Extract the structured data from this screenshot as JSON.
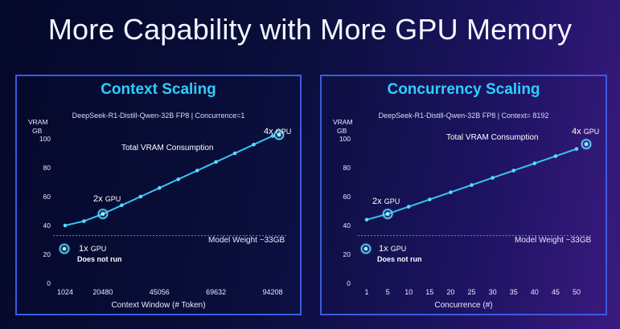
{
  "page_title": "More Capability with More GPU Memory",
  "chart_data": [
    {
      "type": "line",
      "title": "Context Scaling",
      "subtitle": "DeepSeek-R1-Distill-Qwen-32B FP8  |  Concurrence=1",
      "ylabel_line1": "VRAM",
      "ylabel_line2": "GB",
      "xlabel": "Context Window (# Token)",
      "ylim": [
        0,
        100
      ],
      "yticks": [
        0,
        20,
        40,
        60,
        80,
        100
      ],
      "x": [
        1024,
        12288,
        20480,
        28672,
        36864,
        45056,
        53248,
        61440,
        69632,
        77824,
        86016,
        94208
      ],
      "xticks": [
        1024,
        20480,
        45056,
        69632,
        94208
      ],
      "series": [
        {
          "name": "Total VRAM Consumption",
          "values": [
            40,
            43,
            48,
            54,
            60,
            66,
            72,
            78,
            84,
            90,
            96,
            102
          ]
        }
      ],
      "reference_line": {
        "value": 33,
        "label": "Model Weight ~33GB"
      },
      "annotations": [
        {
          "prefix": "1x",
          "suffix": "GPU",
          "note": "Does not run"
        },
        {
          "prefix": "2x",
          "suffix": "GPU"
        },
        {
          "prefix": "4x",
          "suffix": "GPU"
        }
      ],
      "grid": false
    },
    {
      "type": "line",
      "title": "Concurrency Scaling",
      "subtitle": "DeepSeek-R1-Distill-Qwen-32B FP8  |  Context= 8192",
      "ylabel_line1": "VRAM",
      "ylabel_line2": "GB",
      "xlabel": "Concurrence (#)",
      "ylim": [
        0,
        100
      ],
      "yticks": [
        0,
        20,
        40,
        60,
        80,
        100
      ],
      "x": [
        1,
        5,
        10,
        15,
        20,
        25,
        30,
        35,
        40,
        45,
        50
      ],
      "xticks": [
        1,
        5,
        10,
        15,
        20,
        25,
        30,
        35,
        40,
        45,
        50
      ],
      "series": [
        {
          "name": "Total VRAM Consumption",
          "values": [
            44,
            48,
            53,
            58,
            63,
            68,
            73,
            78,
            83,
            88,
            93
          ]
        }
      ],
      "reference_line": {
        "value": 33,
        "label": "Model Weight ~33GB"
      },
      "annotations": [
        {
          "prefix": "1x",
          "suffix": "GPU",
          "note": "Does not run"
        },
        {
          "prefix": "2x",
          "suffix": "GPU"
        },
        {
          "prefix": "4x",
          "suffix": "GPU"
        }
      ],
      "grid": false
    }
  ],
  "colors": {
    "line": "#36c5f4",
    "marker": "#5fd8ff",
    "title": "#2bd0ff",
    "frame": "#3d5be0"
  }
}
